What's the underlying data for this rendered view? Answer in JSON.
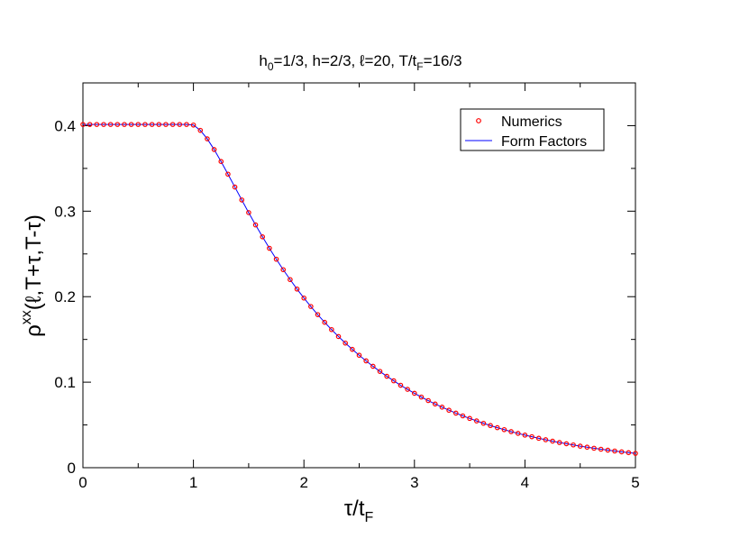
{
  "chart_data": {
    "type": "line",
    "title": {
      "base": "h",
      "sub": "0",
      "rest": "=1/3,  h=2/3,  ℓ=20,  T/t",
      "sub2": "F",
      "end": "=16/3"
    },
    "xlabel": {
      "base": "τ/t",
      "sub": "F"
    },
    "ylabel": {
      "base": "ρ",
      "sup": "xx",
      "rest": "(ℓ,T+τ,T-τ)"
    },
    "xlim": [
      0,
      5
    ],
    "ylim": [
      0,
      0.45
    ],
    "xticks": [
      0,
      1,
      2,
      3,
      4,
      5
    ],
    "xtick_labels": [
      "0",
      "1",
      "2",
      "3",
      "4",
      "5"
    ],
    "yticks": [
      0,
      0.1,
      0.2,
      0.3,
      0.4
    ],
    "ytick_labels": [
      "0",
      "0.1",
      "0.2",
      "0.3",
      "0.4"
    ],
    "grid": false,
    "legend_position": "top-right",
    "series": [
      {
        "name": "Numerics",
        "style": "markers",
        "color": "#ff0000",
        "x": [
          0,
          0.0625,
          0.125,
          0.1875,
          0.25,
          0.3125,
          0.375,
          0.4375,
          0.5,
          0.5625,
          0.625,
          0.6875,
          0.75,
          0.8125,
          0.875,
          0.9375,
          1.0,
          1.0625,
          1.125,
          1.1875,
          1.25,
          1.3125,
          1.375,
          1.4375,
          1.5,
          1.5625,
          1.625,
          1.6875,
          1.75,
          1.8125,
          1.875,
          1.9375,
          2.0,
          2.0625,
          2.125,
          2.1875,
          2.25,
          2.3125,
          2.375,
          2.4375,
          2.5,
          2.5625,
          2.625,
          2.6875,
          2.75,
          2.8125,
          2.875,
          2.9375,
          3.0,
          3.0625,
          3.125,
          3.1875,
          3.25,
          3.3125,
          3.375,
          3.4375,
          3.5,
          3.5625,
          3.625,
          3.6875,
          3.75,
          3.8125,
          3.875,
          3.9375,
          4.0,
          4.0625,
          4.125,
          4.1875,
          4.25,
          4.3125,
          4.375,
          4.4375,
          4.5,
          4.5625,
          4.625,
          4.6875,
          4.75,
          4.8125,
          4.875,
          4.9375,
          5.0
        ],
        "y": [
          0.4014,
          0.4014,
          0.4014,
          0.4014,
          0.4014,
          0.4014,
          0.4014,
          0.4014,
          0.4014,
          0.4014,
          0.4014,
          0.4014,
          0.4014,
          0.4014,
          0.4014,
          0.4014,
          0.4007,
          0.3945,
          0.3846,
          0.3721,
          0.3581,
          0.3433,
          0.3282,
          0.3131,
          0.2983,
          0.2839,
          0.27,
          0.2566,
          0.2438,
          0.2316,
          0.22,
          0.2089,
          0.1984,
          0.1885,
          0.179,
          0.17,
          0.1615,
          0.1534,
          0.1457,
          0.1384,
          0.1315,
          0.1249,
          0.1186,
          0.1126,
          0.1069,
          0.1016,
          0.0964,
          0.0916,
          0.087,
          0.0826,
          0.0785,
          0.0745,
          0.0708,
          0.0672,
          0.0638,
          0.0606,
          0.0576,
          0.0547,
          0.0519,
          0.0493,
          0.0468,
          0.0445,
          0.0422,
          0.0401,
          0.0381,
          0.0362,
          0.0344,
          0.0327,
          0.031,
          0.0294,
          0.028,
          0.0266,
          0.0252,
          0.024,
          0.0228,
          0.0216,
          0.0205,
          0.0195,
          0.0185,
          0.0176,
          0.0167
        ]
      },
      {
        "name": "Form Factors",
        "style": "line",
        "color": "#0000ff",
        "x": [
          0,
          0.0625,
          0.125,
          0.1875,
          0.25,
          0.3125,
          0.375,
          0.4375,
          0.5,
          0.5625,
          0.625,
          0.6875,
          0.75,
          0.8125,
          0.875,
          0.9375,
          1.0,
          1.0625,
          1.125,
          1.1875,
          1.25,
          1.3125,
          1.375,
          1.4375,
          1.5,
          1.5625,
          1.625,
          1.6875,
          1.75,
          1.8125,
          1.875,
          1.9375,
          2.0,
          2.0625,
          2.125,
          2.1875,
          2.25,
          2.3125,
          2.375,
          2.4375,
          2.5,
          2.5625,
          2.625,
          2.6875,
          2.75,
          2.8125,
          2.875,
          2.9375,
          3.0,
          3.0625,
          3.125,
          3.1875,
          3.25,
          3.3125,
          3.375,
          3.4375,
          3.5,
          3.5625,
          3.625,
          3.6875,
          3.75,
          3.8125,
          3.875,
          3.9375,
          4.0,
          4.0625,
          4.125,
          4.1875,
          4.25,
          4.3125,
          4.375,
          4.4375,
          4.5,
          4.5625,
          4.625,
          4.6875,
          4.75,
          4.8125,
          4.875,
          4.9375,
          5.0
        ],
        "y": [
          0.4014,
          0.4014,
          0.4014,
          0.4014,
          0.4014,
          0.4014,
          0.4014,
          0.4014,
          0.4014,
          0.4014,
          0.4014,
          0.4014,
          0.4014,
          0.4014,
          0.4014,
          0.4014,
          0.4007,
          0.3945,
          0.3846,
          0.3721,
          0.3581,
          0.3433,
          0.3282,
          0.3131,
          0.2983,
          0.2839,
          0.27,
          0.2566,
          0.2438,
          0.2316,
          0.22,
          0.2089,
          0.1984,
          0.1885,
          0.179,
          0.17,
          0.1615,
          0.1534,
          0.1457,
          0.1384,
          0.1315,
          0.1249,
          0.1186,
          0.1126,
          0.1069,
          0.1016,
          0.0964,
          0.0916,
          0.087,
          0.0826,
          0.0785,
          0.0745,
          0.0708,
          0.0672,
          0.0638,
          0.0606,
          0.0576,
          0.0547,
          0.0519,
          0.0493,
          0.0468,
          0.0445,
          0.0422,
          0.0401,
          0.0381,
          0.0362,
          0.0344,
          0.0327,
          0.031,
          0.0294,
          0.028,
          0.0266,
          0.0252,
          0.024,
          0.0228,
          0.0216,
          0.0205,
          0.0195,
          0.0185,
          0.0176,
          0.0167
        ]
      }
    ]
  }
}
